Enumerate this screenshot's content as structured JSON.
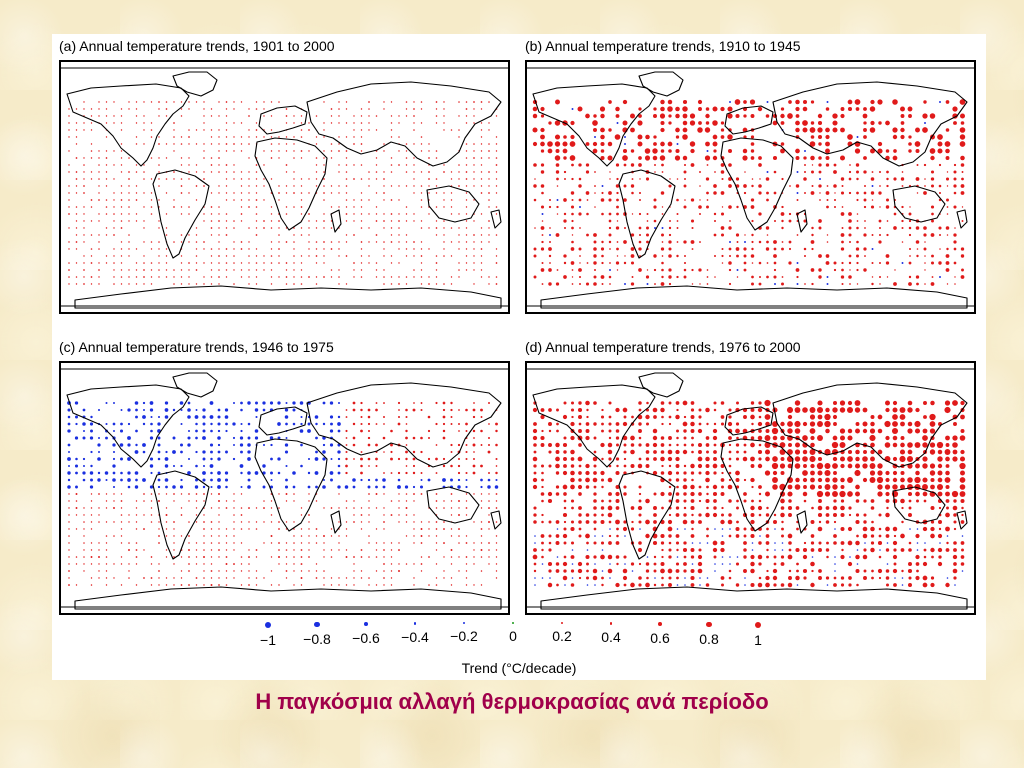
{
  "caption": "Η παγκόσμια αλλαγή θερμοκρασίας ανά περίοδο",
  "panels": [
    {
      "title": "(a) Annual temperature trends, 1901 to 2000",
      "profile": "mild-warming"
    },
    {
      "title": "(b) Annual temperature trends, 1910 to 1945",
      "profile": "early-warming"
    },
    {
      "title": "(c) Annual temperature trends, 1946 to 1975",
      "profile": "cooling"
    },
    {
      "title": "(d) Annual temperature trends, 1976 to 2000",
      "profile": "strong-warming"
    }
  ],
  "legend": {
    "axis_label": "Trend (°C/decade)",
    "items": [
      {
        "label": "−1",
        "value": -1,
        "color": "#1a2fe0"
      },
      {
        "label": "−0.8",
        "value": -0.8,
        "color": "#1a2fe0"
      },
      {
        "label": "−0.6",
        "value": -0.6,
        "color": "#1a2fe0"
      },
      {
        "label": "−0.4",
        "value": -0.4,
        "color": "#1a2fe0"
      },
      {
        "label": "−0.2",
        "value": -0.2,
        "color": "#1a2fe0"
      },
      {
        "label": "0",
        "value": 0,
        "color": "#1a9a1a"
      },
      {
        "label": "0.2",
        "value": 0.2,
        "color": "#e01a1a"
      },
      {
        "label": "0.4",
        "value": 0.4,
        "color": "#e01a1a"
      },
      {
        "label": "0.6",
        "value": 0.6,
        "color": "#e01a1a"
      },
      {
        "label": "0.8",
        "value": 0.8,
        "color": "#e01a1a"
      },
      {
        "label": "1",
        "value": 1,
        "color": "#e01a1a"
      }
    ]
  },
  "colors": {
    "warming": "#e01a1a",
    "cooling": "#1a2fe0",
    "neutral": "#1a9a1a"
  }
}
